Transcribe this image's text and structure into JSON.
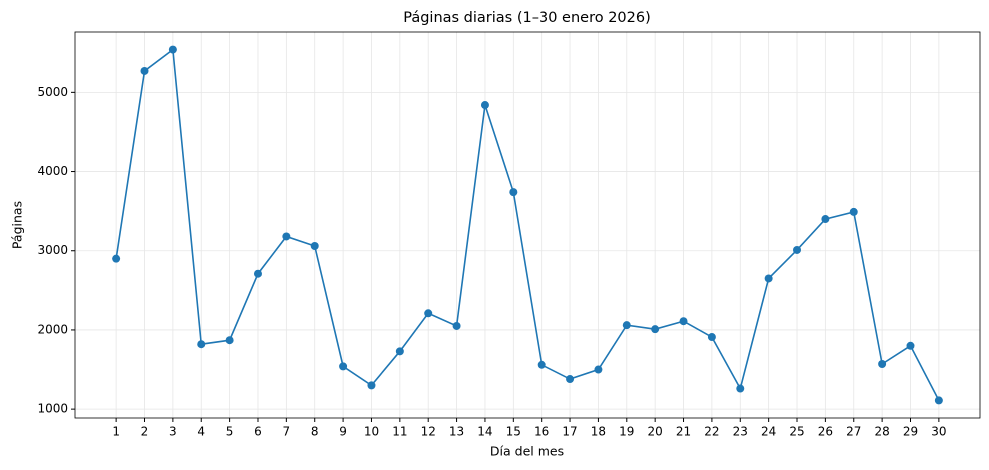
{
  "chart_data": {
    "type": "line",
    "title": "Páginas diarias (1–30 enero 2026)",
    "x_label": "Día del mes",
    "y_label": "Páginas",
    "x": [
      1,
      2,
      3,
      4,
      5,
      6,
      7,
      8,
      9,
      10,
      11,
      12,
      13,
      14,
      15,
      16,
      17,
      18,
      19,
      20,
      21,
      22,
      23,
      24,
      25,
      26,
      27,
      28,
      29,
      30
    ],
    "series": [
      {
        "color": "#1f77b4",
        "values": [
          2900,
          5270,
          5540,
          1820,
          1870,
          2710,
          3180,
          3060,
          1540,
          1300,
          1730,
          2210,
          2050,
          4840,
          3740,
          1560,
          1380,
          1500,
          2060,
          2010,
          2110,
          1910,
          1260,
          2650,
          3010,
          3400,
          3490,
          1570,
          1800,
          1110
        ]
      }
    ],
    "xlim": [
      -0.45,
      31.45
    ],
    "xticks": [
      1,
      2,
      3,
      4,
      5,
      6,
      7,
      8,
      9,
      10,
      11,
      12,
      13,
      14,
      15,
      16,
      17,
      18,
      19,
      20,
      21,
      22,
      23,
      24,
      25,
      26,
      27,
      28,
      29,
      30
    ],
    "ylim": [
      888,
      5762
    ],
    "yticks": [
      1000,
      2000,
      3000,
      4000,
      5000
    ],
    "grid": true
  }
}
